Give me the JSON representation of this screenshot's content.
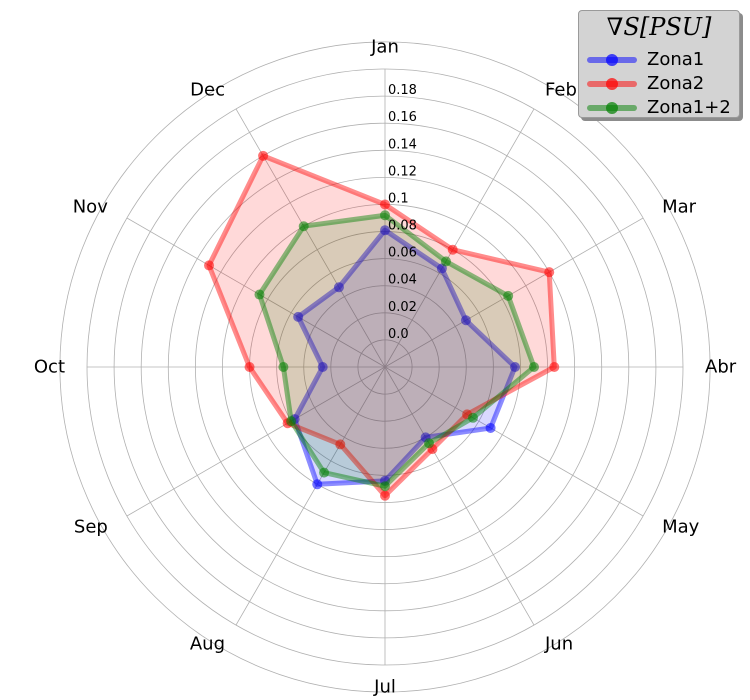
{
  "chart_data": {
    "type": "radar",
    "categories": [
      "Jan",
      "Feb",
      "Mar",
      "Abr",
      "May",
      "Jun",
      "Jul",
      "Aug",
      "Sep",
      "Oct",
      "Nov",
      "Dec"
    ],
    "r_ticks": [
      "0.0",
      "0.02",
      "0.04",
      "0.06",
      "0.08",
      "0.1",
      "0.12",
      "0.14",
      "0.16",
      "0.18"
    ],
    "r_range": [
      -0.02,
      0.2
    ],
    "legend_title": "∇S[PSU]",
    "legend_position": "top-right",
    "grid": true,
    "series": [
      {
        "name": "Zona1",
        "color": "#0000ff",
        "values": [
          0.081,
          0.064,
          0.049,
          0.076,
          0.07,
          0.04,
          0.064,
          0.08,
          0.057,
          0.026,
          0.054,
          0.048
        ]
      },
      {
        "name": "Zona2",
        "color": "#ff0000",
        "values": [
          0.1,
          0.08,
          0.12,
          0.105,
          0.05,
          0.05,
          0.075,
          0.046,
          0.063,
          0.08,
          0.13,
          0.16
        ]
      },
      {
        "name": "Zona1+2",
        "color": "#008000",
        "values": [
          0.092,
          0.07,
          0.085,
          0.09,
          0.055,
          0.045,
          0.068,
          0.07,
          0.06,
          0.055,
          0.087,
          0.1
        ]
      }
    ]
  }
}
